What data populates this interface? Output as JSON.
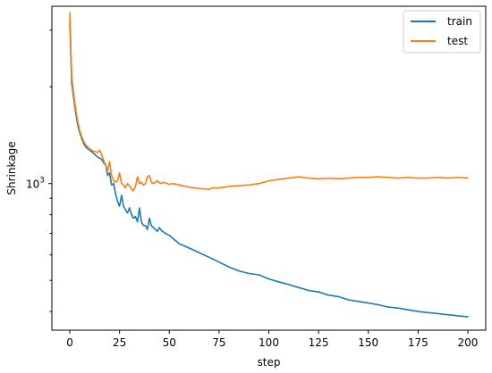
{
  "chart_data": {
    "type": "line",
    "xlabel": "step",
    "ylabel": "Shrinkage",
    "yscale": "log",
    "xlim": [
      -9,
      209
    ],
    "ylim": [
      350,
      3560
    ],
    "grid": false,
    "legend_position": "top-right",
    "x_ticks": [
      0,
      25,
      50,
      75,
      100,
      125,
      150,
      175,
      200
    ],
    "y_major_ticks": [
      {
        "value": 1000,
        "label": "10³",
        "base": "10",
        "exp": "3"
      }
    ],
    "y_minor_ticks": [
      400,
      500,
      600,
      700,
      800,
      900,
      2000,
      3000
    ],
    "series": [
      {
        "name": "train",
        "color": "#1f77b4",
        "points": [
          [
            0,
            3200
          ],
          [
            1,
            2050
          ],
          [
            2,
            1830
          ],
          [
            3,
            1650
          ],
          [
            4,
            1520
          ],
          [
            5,
            1440
          ],
          [
            6,
            1380
          ],
          [
            7,
            1330
          ],
          [
            8,
            1300
          ],
          [
            10,
            1270
          ],
          [
            12,
            1240
          ],
          [
            14,
            1210
          ],
          [
            15,
            1200
          ],
          [
            16,
            1190
          ],
          [
            17,
            1160
          ],
          [
            18,
            1150
          ],
          [
            19,
            1060
          ],
          [
            20,
            1080
          ],
          [
            21,
            990
          ],
          [
            22,
            1000
          ],
          [
            23,
            930
          ],
          [
            24,
            880
          ],
          [
            25,
            850
          ],
          [
            26,
            920
          ],
          [
            27,
            850
          ],
          [
            28,
            830
          ],
          [
            29,
            810
          ],
          [
            30,
            840
          ],
          [
            31,
            800
          ],
          [
            32,
            780
          ],
          [
            33,
            790
          ],
          [
            34,
            760
          ],
          [
            35,
            840
          ],
          [
            36,
            760
          ],
          [
            37,
            740
          ],
          [
            38,
            740
          ],
          [
            39,
            720
          ],
          [
            40,
            780
          ],
          [
            41,
            740
          ],
          [
            42,
            730
          ],
          [
            43,
            720
          ],
          [
            44,
            710
          ],
          [
            45,
            730
          ],
          [
            46,
            715
          ],
          [
            48,
            700
          ],
          [
            50,
            690
          ],
          [
            55,
            650
          ],
          [
            60,
            630
          ],
          [
            65,
            610
          ],
          [
            70,
            590
          ],
          [
            75,
            570
          ],
          [
            80,
            550
          ],
          [
            85,
            535
          ],
          [
            90,
            525
          ],
          [
            95,
            520
          ],
          [
            100,
            505
          ],
          [
            105,
            495
          ],
          [
            110,
            485
          ],
          [
            115,
            475
          ],
          [
            120,
            465
          ],
          [
            125,
            460
          ],
          [
            130,
            450
          ],
          [
            135,
            445
          ],
          [
            140,
            435
          ],
          [
            145,
            430
          ],
          [
            150,
            425
          ],
          [
            155,
            420
          ],
          [
            160,
            413
          ],
          [
            165,
            410
          ],
          [
            170,
            405
          ],
          [
            175,
            400
          ],
          [
            180,
            397
          ],
          [
            185,
            394
          ],
          [
            190,
            391
          ],
          [
            195,
            388
          ],
          [
            200,
            385
          ]
        ]
      },
      {
        "name": "test",
        "color": "#ff7f0e",
        "points": [
          [
            0,
            3400
          ],
          [
            1,
            2150
          ],
          [
            2,
            1880
          ],
          [
            3,
            1700
          ],
          [
            4,
            1560
          ],
          [
            5,
            1460
          ],
          [
            6,
            1400
          ],
          [
            7,
            1350
          ],
          [
            8,
            1320
          ],
          [
            10,
            1280
          ],
          [
            12,
            1260
          ],
          [
            14,
            1250
          ],
          [
            15,
            1270
          ],
          [
            16,
            1230
          ],
          [
            17,
            1180
          ],
          [
            18,
            1140
          ],
          [
            19,
            1100
          ],
          [
            20,
            1170
          ],
          [
            21,
            1060
          ],
          [
            22,
            1020
          ],
          [
            23,
            1010
          ],
          [
            24,
            1020
          ],
          [
            25,
            1080
          ],
          [
            26,
            1000
          ],
          [
            27,
            990
          ],
          [
            28,
            970
          ],
          [
            29,
            1000
          ],
          [
            30,
            985
          ],
          [
            31,
            960
          ],
          [
            32,
            950
          ],
          [
            33,
            980
          ],
          [
            34,
            1050
          ],
          [
            35,
            1000
          ],
          [
            36,
            1010
          ],
          [
            37,
            990
          ],
          [
            38,
            1000
          ],
          [
            39,
            1050
          ],
          [
            40,
            1060
          ],
          [
            41,
            1010
          ],
          [
            42,
            1000
          ],
          [
            43,
            1010
          ],
          [
            44,
            1020
          ],
          [
            45,
            1005
          ],
          [
            46,
            1000
          ],
          [
            47,
            1010
          ],
          [
            48,
            1005
          ],
          [
            50,
            995
          ],
          [
            52,
            1000
          ],
          [
            55,
            990
          ],
          [
            58,
            980
          ],
          [
            60,
            975
          ],
          [
            65,
            965
          ],
          [
            70,
            960
          ],
          [
            72,
            970
          ],
          [
            75,
            970
          ],
          [
            78,
            975
          ],
          [
            80,
            980
          ],
          [
            85,
            985
          ],
          [
            90,
            990
          ],
          [
            95,
            1000
          ],
          [
            100,
            1020
          ],
          [
            105,
            1030
          ],
          [
            110,
            1040
          ],
          [
            115,
            1050
          ],
          [
            120,
            1040
          ],
          [
            125,
            1035
          ],
          [
            130,
            1040
          ],
          [
            135,
            1035
          ],
          [
            140,
            1040
          ],
          [
            145,
            1045
          ],
          [
            150,
            1045
          ],
          [
            155,
            1050
          ],
          [
            160,
            1045
          ],
          [
            165,
            1040
          ],
          [
            170,
            1045
          ],
          [
            175,
            1040
          ],
          [
            180,
            1040
          ],
          [
            185,
            1045
          ],
          [
            190,
            1040
          ],
          [
            195,
            1045
          ],
          [
            200,
            1040
          ]
        ]
      }
    ]
  }
}
